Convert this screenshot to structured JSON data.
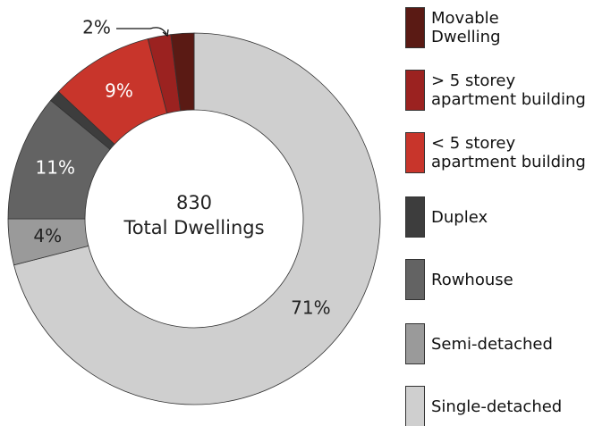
{
  "chart_data": {
    "type": "donut",
    "categories": [
      "Movable Dwelling",
      "> 5 storey apartment building",
      "< 5 storey apartment building",
      "Duplex",
      "Rowhouse",
      "Semi-detached",
      "Single-detached"
    ],
    "values": [
      2,
      2,
      9,
      1,
      11,
      4,
      71
    ],
    "value_labels": [
      null,
      "2%",
      "9%",
      null,
      "11%",
      "4%",
      "71%"
    ],
    "colors": [
      "#5a1a14",
      "#9b2220",
      "#c8352b",
      "#3d3d3d",
      "#636363",
      "#9a9a9a",
      "#cfcfcf"
    ],
    "total": 830,
    "total_label": "Total Dwellings",
    "legend": "right"
  }
}
